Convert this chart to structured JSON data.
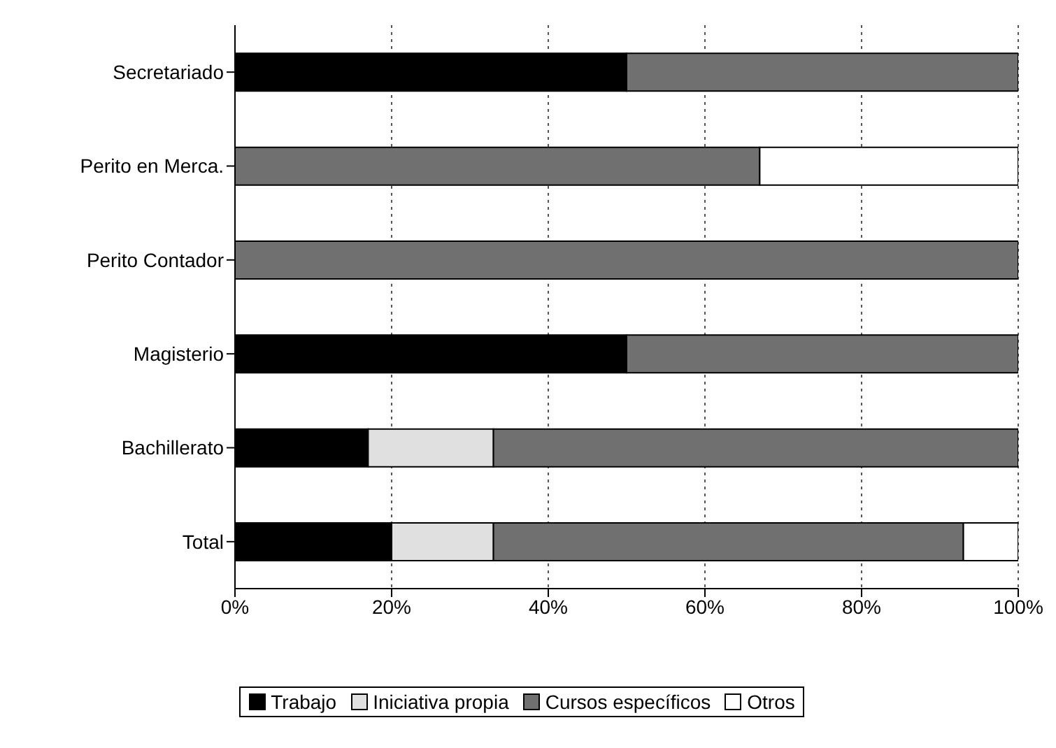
{
  "chart_data": {
    "type": "bar",
    "orientation": "horizontal",
    "stacked": true,
    "categories": [
      "Secretariado",
      "Perito en Merca.",
      "Perito Contador",
      "Magisterio",
      "Bachillerato",
      "Total"
    ],
    "series": [
      {
        "name": "Trabajo",
        "color": "#000000",
        "values": [
          50,
          0,
          0,
          50,
          17,
          20
        ]
      },
      {
        "name": "Iniciativa propia",
        "color": "#e0e0e0",
        "values": [
          0,
          0,
          0,
          0,
          16,
          13
        ]
      },
      {
        "name": "Cursos específicos",
        "color": "#707070",
        "values": [
          50,
          67,
          100,
          50,
          67,
          60
        ]
      },
      {
        "name": "Otros",
        "color": "#ffffff",
        "values": [
          0,
          33,
          0,
          0,
          0,
          7
        ]
      }
    ],
    "xlim": [
      0,
      100
    ],
    "xticks": [
      {
        "value": 0,
        "label": "0%"
      },
      {
        "value": 20,
        "label": "20%"
      },
      {
        "value": 40,
        "label": "40%"
      },
      {
        "value": 60,
        "label": "60%"
      },
      {
        "value": 80,
        "label": "80%"
      },
      {
        "value": 100,
        "label": "100%"
      }
    ],
    "grid": "x",
    "legend": "bottom"
  }
}
